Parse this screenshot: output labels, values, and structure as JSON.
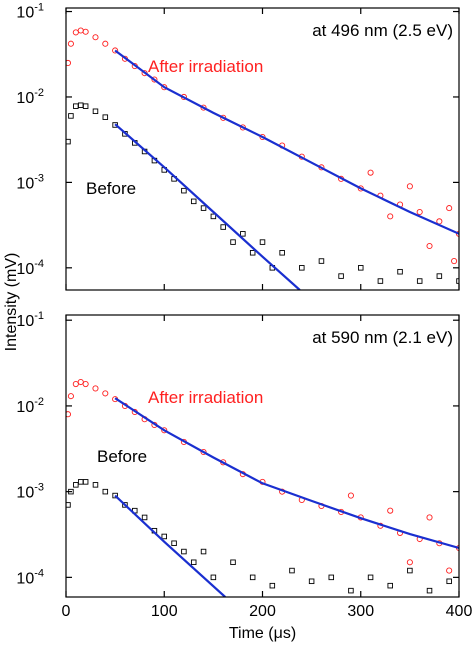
{
  "ylabel": "Intensity (mV)",
  "chart_data": [
    {
      "type": "scatter",
      "yscale": "log",
      "annotation": "at 496 nm (2.5 eV)",
      "xlim": [
        0,
        400
      ],
      "xticks": [
        0,
        100,
        200,
        300,
        400
      ],
      "show_xtick_labels": false,
      "ylim": [
        5.5e-05,
        0.11
      ],
      "yticks": [
        {
          "value": 0.1,
          "label": "10",
          "exponent": "-1"
        },
        {
          "value": 0.01,
          "label": "10",
          "exponent": "-2"
        },
        {
          "value": 0.001,
          "label": "10",
          "exponent": "-3"
        },
        {
          "value": 0.0001,
          "label": "10",
          "exponent": "-4"
        }
      ],
      "series": [
        {
          "name": "After irradiation",
          "color": "#ff2020",
          "marker": "circle",
          "x": [
            2,
            5,
            10,
            15,
            20,
            30,
            40,
            50,
            60,
            70,
            80,
            90,
            100,
            120,
            140,
            160,
            180,
            200,
            220,
            240,
            260,
            280,
            300,
            320,
            340,
            360,
            380,
            400,
            310,
            330,
            350,
            370,
            390,
            395
          ],
          "values": [
            0.025,
            0.042,
            0.057,
            0.06,
            0.058,
            0.05,
            0.042,
            0.035,
            0.028,
            0.023,
            0.019,
            0.016,
            0.013,
            0.01,
            0.0075,
            0.0057,
            0.0044,
            0.0034,
            0.0027,
            0.002,
            0.0015,
            0.0011,
            0.00085,
            0.0007,
            0.00055,
            0.00045,
            0.00035,
            0.00025,
            0.0013,
            0.0004,
            0.0009,
            0.00018,
            0.0005,
            0.00012
          ]
        },
        {
          "name": "Before",
          "color": "#000000",
          "marker": "square",
          "x": [
            2,
            5,
            10,
            15,
            20,
            30,
            40,
            50,
            60,
            70,
            80,
            90,
            100,
            110,
            120,
            130,
            140,
            150,
            160,
            170,
            180,
            190,
            200,
            210,
            220,
            240,
            260,
            280,
            300,
            320,
            340,
            360,
            380,
            400
          ],
          "values": [
            0.003,
            0.006,
            0.0078,
            0.008,
            0.0078,
            0.0068,
            0.0058,
            0.0047,
            0.0037,
            0.0029,
            0.0023,
            0.0018,
            0.0014,
            0.0011,
            0.0008,
            0.0006,
            0.0005,
            0.0004,
            0.0003,
            0.0002,
            0.00025,
            0.00015,
            0.0002,
            0.0001,
            0.00015,
            0.0001,
            0.00012,
            8e-05,
            0.0001,
            7e-05,
            9e-05,
            7e-05,
            8e-05,
            7e-05
          ]
        }
      ],
      "fits": [
        {
          "color": "#1a2fd0",
          "x": [
            50,
            65,
            100,
            150,
            200,
            250,
            300,
            350,
            400
          ],
          "values": [
            0.035,
            0.026,
            0.013,
            0.0065,
            0.0034,
            0.0017,
            0.00085,
            0.00045,
            0.00025
          ]
        },
        {
          "color": "#1a2fd0",
          "x": [
            50,
            100,
            150,
            200,
            238
          ],
          "values": [
            0.0048,
            0.0015,
            0.00045,
            0.000135,
            5.5e-05
          ]
        }
      ]
    },
    {
      "type": "scatter",
      "yscale": "log",
      "annotation": "at 590 nm (2.1 eV)",
      "xlabel": "Time (μs)",
      "xlim": [
        0,
        400
      ],
      "xticks": [
        0,
        100,
        200,
        300,
        400
      ],
      "show_xtick_labels": true,
      "ylim": [
        5.9e-05,
        0.115
      ],
      "yticks": [
        {
          "value": 0.1,
          "label": "10",
          "exponent": "-1"
        },
        {
          "value": 0.01,
          "label": "10",
          "exponent": "-2"
        },
        {
          "value": 0.001,
          "label": "10",
          "exponent": "-3"
        },
        {
          "value": 0.0001,
          "label": "10",
          "exponent": "-4"
        }
      ],
      "series": [
        {
          "name": "After irradiation",
          "color": "#ff2020",
          "marker": "circle",
          "x": [
            2,
            5,
            10,
            15,
            20,
            30,
            40,
            50,
            60,
            70,
            80,
            90,
            100,
            120,
            140,
            160,
            180,
            200,
            220,
            240,
            260,
            280,
            300,
            320,
            340,
            360,
            380,
            400,
            290,
            330,
            350,
            370,
            390
          ],
          "values": [
            0.008,
            0.013,
            0.018,
            0.019,
            0.018,
            0.016,
            0.014,
            0.012,
            0.01,
            0.0085,
            0.007,
            0.006,
            0.0052,
            0.0038,
            0.0029,
            0.0022,
            0.0016,
            0.0013,
            0.001,
            0.0008,
            0.00068,
            0.00058,
            0.0005,
            0.0004,
            0.00033,
            0.00028,
            0.00025,
            0.00022,
            0.0009,
            0.0006,
            0.00015,
            0.0005,
            0.00012
          ]
        },
        {
          "name": "Before",
          "color": "#000000",
          "marker": "square",
          "x": [
            2,
            5,
            10,
            15,
            20,
            30,
            40,
            50,
            60,
            70,
            80,
            90,
            100,
            110,
            120,
            130,
            140,
            150,
            170,
            190,
            210,
            230,
            250,
            270,
            290,
            310,
            330,
            350,
            370,
            390
          ],
          "values": [
            0.0007,
            0.001,
            0.0012,
            0.0013,
            0.0013,
            0.0012,
            0.001,
            0.0009,
            0.0007,
            0.0006,
            0.0005,
            0.00035,
            0.0003,
            0.00025,
            0.0002,
            0.00015,
            0.0002,
            0.0001,
            0.00015,
            0.0001,
            8e-05,
            0.00012,
            9e-05,
            0.0001,
            7e-05,
            0.0001,
            8e-05,
            0.00012,
            7e-05,
            9e-05
          ]
        }
      ],
      "fits": [
        {
          "color": "#1a2fd0",
          "x": [
            50,
            100,
            150,
            200,
            250,
            300,
            350,
            400
          ],
          "values": [
            0.0123,
            0.0052,
            0.0025,
            0.00125,
            0.00078,
            0.00049,
            0.00032,
            0.00022
          ]
        },
        {
          "color": "#1a2fd0",
          "x": [
            50,
            100,
            162
          ],
          "values": [
            0.0009,
            0.00026,
            5.9e-05
          ]
        }
      ]
    }
  ]
}
